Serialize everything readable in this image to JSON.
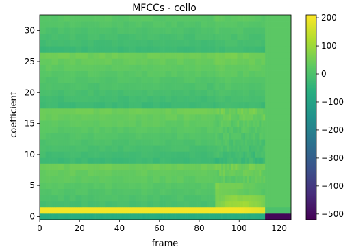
{
  "chart_data": {
    "type": "heatmap",
    "title": "MFCCs - cello",
    "xlabel": "frame",
    "ylabel": "coefficient",
    "xlim": [
      0,
      126
    ],
    "ylim": [
      -0.5,
      32.5
    ],
    "x_ticks": [
      0,
      20,
      40,
      60,
      80,
      100,
      120
    ],
    "y_ticks": [
      0,
      5,
      10,
      15,
      20,
      25,
      30
    ],
    "n_frames": 126,
    "n_coefficients": 33,
    "colormap": "viridis",
    "colorbar": {
      "range": [
        -520,
        210
      ],
      "ticks": [
        200,
        100,
        0,
        -100,
        -200,
        -300,
        -400,
        -500
      ],
      "tick_labels": [
        "200",
        "100",
        "0",
        "−100",
        "−200",
        "−300",
        "−400",
        "−500"
      ]
    },
    "approx_values": {
      "coefficient_0_frames_0_112": -60,
      "coefficient_0_frames_113_125": -510,
      "coefficient_1_frames_0_112": 200,
      "coefficient_1_frames_113_125": 0,
      "coefficients_2_to_32": "mostly between -60 and 80",
      "frames_88_112_low_coefficients": "elevated, 60 to 150"
    }
  }
}
